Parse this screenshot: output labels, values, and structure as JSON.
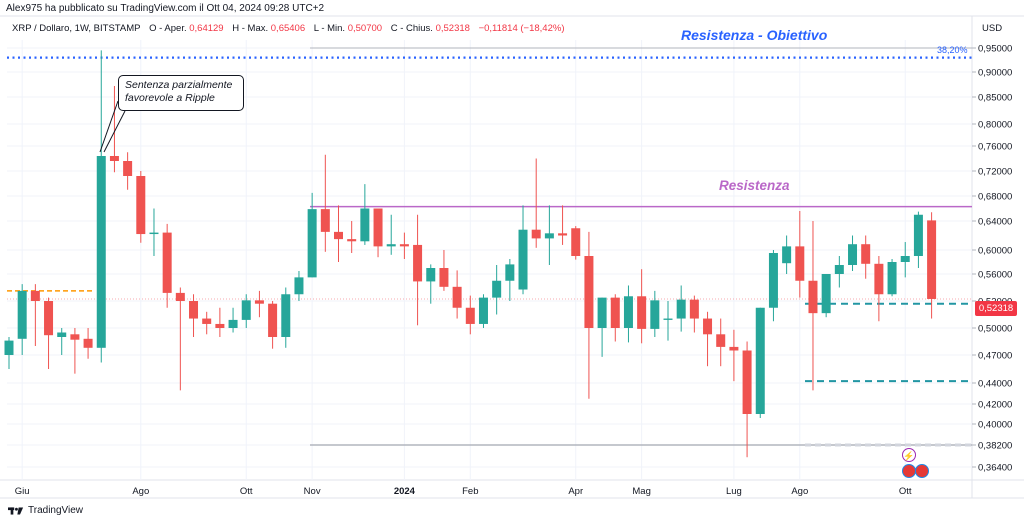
{
  "header": {
    "published_by": "Alex975 ha pubblicato su TradingView.com il Ott 04, 2024 09:28 UTC+2",
    "symbol": "XRP / Dollaro, 1W, BITSTAMP",
    "open_label": "O - Aper.",
    "open_value": "0,64129",
    "high_label": "H - Max.",
    "high_value": "0,65406",
    "low_label": "L - Min.",
    "low_value": "0,50700",
    "close_label": "C - Chius.",
    "close_value": "0,52318",
    "change": "−0,11814 (−18,42%)",
    "currency": "USD"
  },
  "annotations": {
    "target_resistance": "Resistenza - Obiettivo",
    "resistance": "Resistenza",
    "fib_level": "38,20%",
    "callout_line1": "Sentenza parzialmente",
    "callout_line2": "favorevole a Ripple",
    "last_price_tag": "0,52318"
  },
  "footer": {
    "brand": "TradingView"
  },
  "colors": {
    "up": "#26a69a",
    "down": "#ef5350",
    "resistance": "#ba68c8",
    "target": "#2962ff",
    "support": "#2196a3",
    "prev_level": "#ff9800"
  },
  "icons": {
    "events": [
      "flash-icon",
      "flag-icon",
      "flag-icon"
    ],
    "brand_logo": "tradingview-logo-icon"
  },
  "chart_data": {
    "type": "candlestick",
    "timeframe": "1W",
    "y_axis": {
      "ticks": [
        0.95,
        0.9,
        0.85,
        0.8,
        0.76,
        0.72,
        0.68,
        0.64,
        0.6,
        0.56,
        0.52,
        0.5,
        0.47,
        0.44,
        0.42,
        0.4,
        0.382,
        0.364
      ],
      "labels": [
        "0,95000",
        "0,90000",
        "0,85000",
        "0,80000",
        "0,76000",
        "0,72000",
        "0,68000",
        "0,64000",
        "0,60000",
        "0,56000",
        "0,52000",
        "0,50000",
        "0,47000",
        "0,44000",
        "0,42000",
        "0,40000",
        "0,38200",
        "0,36400"
      ]
    },
    "x_axis": {
      "labels": [
        "Giu",
        "Ago",
        "Ott",
        "Nov",
        "2024",
        "Feb",
        "Apr",
        "Mag",
        "Lug",
        "Ago",
        "Ott"
      ],
      "label_candle_index": [
        1,
        10,
        18,
        23,
        30,
        35,
        43,
        48,
        55,
        60,
        68
      ]
    },
    "levels": {
      "target_resistance": 0.93,
      "fib_38_2": 0.95,
      "resistance": 0.663,
      "prior_support": 0.535,
      "support_1": 0.518,
      "support_2": 0.442,
      "fib_low": 0.382
    },
    "candles": [
      {
        "o": 0.47,
        "h": 0.49,
        "l": 0.455,
        "c": 0.486
      },
      {
        "o": 0.488,
        "h": 0.545,
        "l": 0.47,
        "c": 0.535
      },
      {
        "o": 0.535,
        "h": 0.545,
        "l": 0.48,
        "c": 0.52
      },
      {
        "o": 0.52,
        "h": 0.525,
        "l": 0.455,
        "c": 0.492
      },
      {
        "o": 0.49,
        "h": 0.5,
        "l": 0.47,
        "c": 0.495
      },
      {
        "o": 0.493,
        "h": 0.5,
        "l": 0.45,
        "c": 0.487
      },
      {
        "o": 0.488,
        "h": 0.5,
        "l": 0.466,
        "c": 0.478
      },
      {
        "o": 0.478,
        "h": 0.945,
        "l": 0.462,
        "c": 0.744
      },
      {
        "o": 0.744,
        "h": 0.872,
        "l": 0.718,
        "c": 0.736
      },
      {
        "o": 0.736,
        "h": 0.75,
        "l": 0.69,
        "c": 0.712
      },
      {
        "o": 0.712,
        "h": 0.72,
        "l": 0.61,
        "c": 0.622
      },
      {
        "o": 0.622,
        "h": 0.66,
        "l": 0.59,
        "c": 0.624
      },
      {
        "o": 0.624,
        "h": 0.636,
        "l": 0.515,
        "c": 0.532
      },
      {
        "o": 0.532,
        "h": 0.54,
        "l": 0.433,
        "c": 0.52
      },
      {
        "o": 0.52,
        "h": 0.53,
        "l": 0.49,
        "c": 0.507
      },
      {
        "o": 0.507,
        "h": 0.512,
        "l": 0.493,
        "c": 0.503
      },
      {
        "o": 0.503,
        "h": 0.515,
        "l": 0.49,
        "c": 0.5
      },
      {
        "o": 0.5,
        "h": 0.515,
        "l": 0.495,
        "c": 0.506
      },
      {
        "o": 0.506,
        "h": 0.53,
        "l": 0.5,
        "c": 0.521
      },
      {
        "o": 0.521,
        "h": 0.535,
        "l": 0.508,
        "c": 0.518
      },
      {
        "o": 0.518,
        "h": 0.52,
        "l": 0.477,
        "c": 0.49
      },
      {
        "o": 0.49,
        "h": 0.54,
        "l": 0.478,
        "c": 0.53
      },
      {
        "o": 0.53,
        "h": 0.565,
        "l": 0.52,
        "c": 0.555
      },
      {
        "o": 0.555,
        "h": 0.685,
        "l": 0.555,
        "c": 0.659
      },
      {
        "o": 0.659,
        "h": 0.746,
        "l": 0.597,
        "c": 0.625
      },
      {
        "o": 0.625,
        "h": 0.665,
        "l": 0.58,
        "c": 0.615
      },
      {
        "o": 0.615,
        "h": 0.64,
        "l": 0.595,
        "c": 0.612
      },
      {
        "o": 0.612,
        "h": 0.699,
        "l": 0.607,
        "c": 0.66
      },
      {
        "o": 0.66,
        "h": 0.66,
        "l": 0.588,
        "c": 0.605
      },
      {
        "o": 0.605,
        "h": 0.65,
        "l": 0.592,
        "c": 0.608
      },
      {
        "o": 0.608,
        "h": 0.624,
        "l": 0.585,
        "c": 0.605
      },
      {
        "o": 0.607,
        "h": 0.65,
        "l": 0.502,
        "c": 0.549
      },
      {
        "o": 0.549,
        "h": 0.576,
        "l": 0.518,
        "c": 0.57
      },
      {
        "o": 0.57,
        "h": 0.6,
        "l": 0.535,
        "c": 0.541
      },
      {
        "o": 0.541,
        "h": 0.566,
        "l": 0.507,
        "c": 0.515
      },
      {
        "o": 0.515,
        "h": 0.528,
        "l": 0.493,
        "c": 0.503
      },
      {
        "o": 0.503,
        "h": 0.53,
        "l": 0.5,
        "c": 0.525
      },
      {
        "o": 0.525,
        "h": 0.575,
        "l": 0.51,
        "c": 0.55
      },
      {
        "o": 0.55,
        "h": 0.585,
        "l": 0.52,
        "c": 0.576
      },
      {
        "o": 0.537,
        "h": 0.665,
        "l": 0.53,
        "c": 0.628
      },
      {
        "o": 0.628,
        "h": 0.74,
        "l": 0.603,
        "c": 0.616
      },
      {
        "o": 0.616,
        "h": 0.665,
        "l": 0.575,
        "c": 0.623
      },
      {
        "o": 0.623,
        "h": 0.665,
        "l": 0.607,
        "c": 0.62
      },
      {
        "o": 0.63,
        "h": 0.633,
        "l": 0.584,
        "c": 0.59
      },
      {
        "o": 0.59,
        "h": 0.625,
        "l": 0.425,
        "c": 0.5
      },
      {
        "o": 0.5,
        "h": 0.525,
        "l": 0.468,
        "c": 0.525
      },
      {
        "o": 0.525,
        "h": 0.53,
        "l": 0.485,
        "c": 0.5
      },
      {
        "o": 0.5,
        "h": 0.543,
        "l": 0.484,
        "c": 0.527
      },
      {
        "o": 0.527,
        "h": 0.568,
        "l": 0.483,
        "c": 0.499
      },
      {
        "o": 0.499,
        "h": 0.535,
        "l": 0.49,
        "c": 0.521
      },
      {
        "o": 0.506,
        "h": 0.52,
        "l": 0.486,
        "c": 0.507
      },
      {
        "o": 0.507,
        "h": 0.543,
        "l": 0.496,
        "c": 0.522
      },
      {
        "o": 0.522,
        "h": 0.528,
        "l": 0.495,
        "c": 0.507
      },
      {
        "o": 0.507,
        "h": 0.512,
        "l": 0.458,
        "c": 0.493
      },
      {
        "o": 0.493,
        "h": 0.507,
        "l": 0.458,
        "c": 0.479
      },
      {
        "o": 0.479,
        "h": 0.498,
        "l": 0.442,
        "c": 0.475
      },
      {
        "o": 0.475,
        "h": 0.485,
        "l": 0.372,
        "c": 0.41
      },
      {
        "o": 0.41,
        "h": 0.515,
        "l": 0.406,
        "c": 0.515
      },
      {
        "o": 0.515,
        "h": 0.6,
        "l": 0.505,
        "c": 0.595
      },
      {
        "o": 0.578,
        "h": 0.62,
        "l": 0.56,
        "c": 0.605
      },
      {
        "o": 0.605,
        "h": 0.656,
        "l": 0.525,
        "c": 0.55
      },
      {
        "o": 0.55,
        "h": 0.64,
        "l": 0.433,
        "c": 0.511
      },
      {
        "o": 0.511,
        "h": 0.56,
        "l": 0.508,
        "c": 0.56
      },
      {
        "o": 0.56,
        "h": 0.59,
        "l": 0.54,
        "c": 0.575
      },
      {
        "o": 0.575,
        "h": 0.62,
        "l": 0.565,
        "c": 0.608
      },
      {
        "o": 0.608,
        "h": 0.62,
        "l": 0.553,
        "c": 0.577
      },
      {
        "o": 0.577,
        "h": 0.59,
        "l": 0.505,
        "c": 0.53
      },
      {
        "o": 0.53,
        "h": 0.585,
        "l": 0.527,
        "c": 0.58
      },
      {
        "o": 0.58,
        "h": 0.611,
        "l": 0.555,
        "c": 0.59
      },
      {
        "o": 0.59,
        "h": 0.655,
        "l": 0.57,
        "c": 0.65
      },
      {
        "o": 0.641,
        "h": 0.654,
        "l": 0.507,
        "c": 0.523
      }
    ]
  }
}
